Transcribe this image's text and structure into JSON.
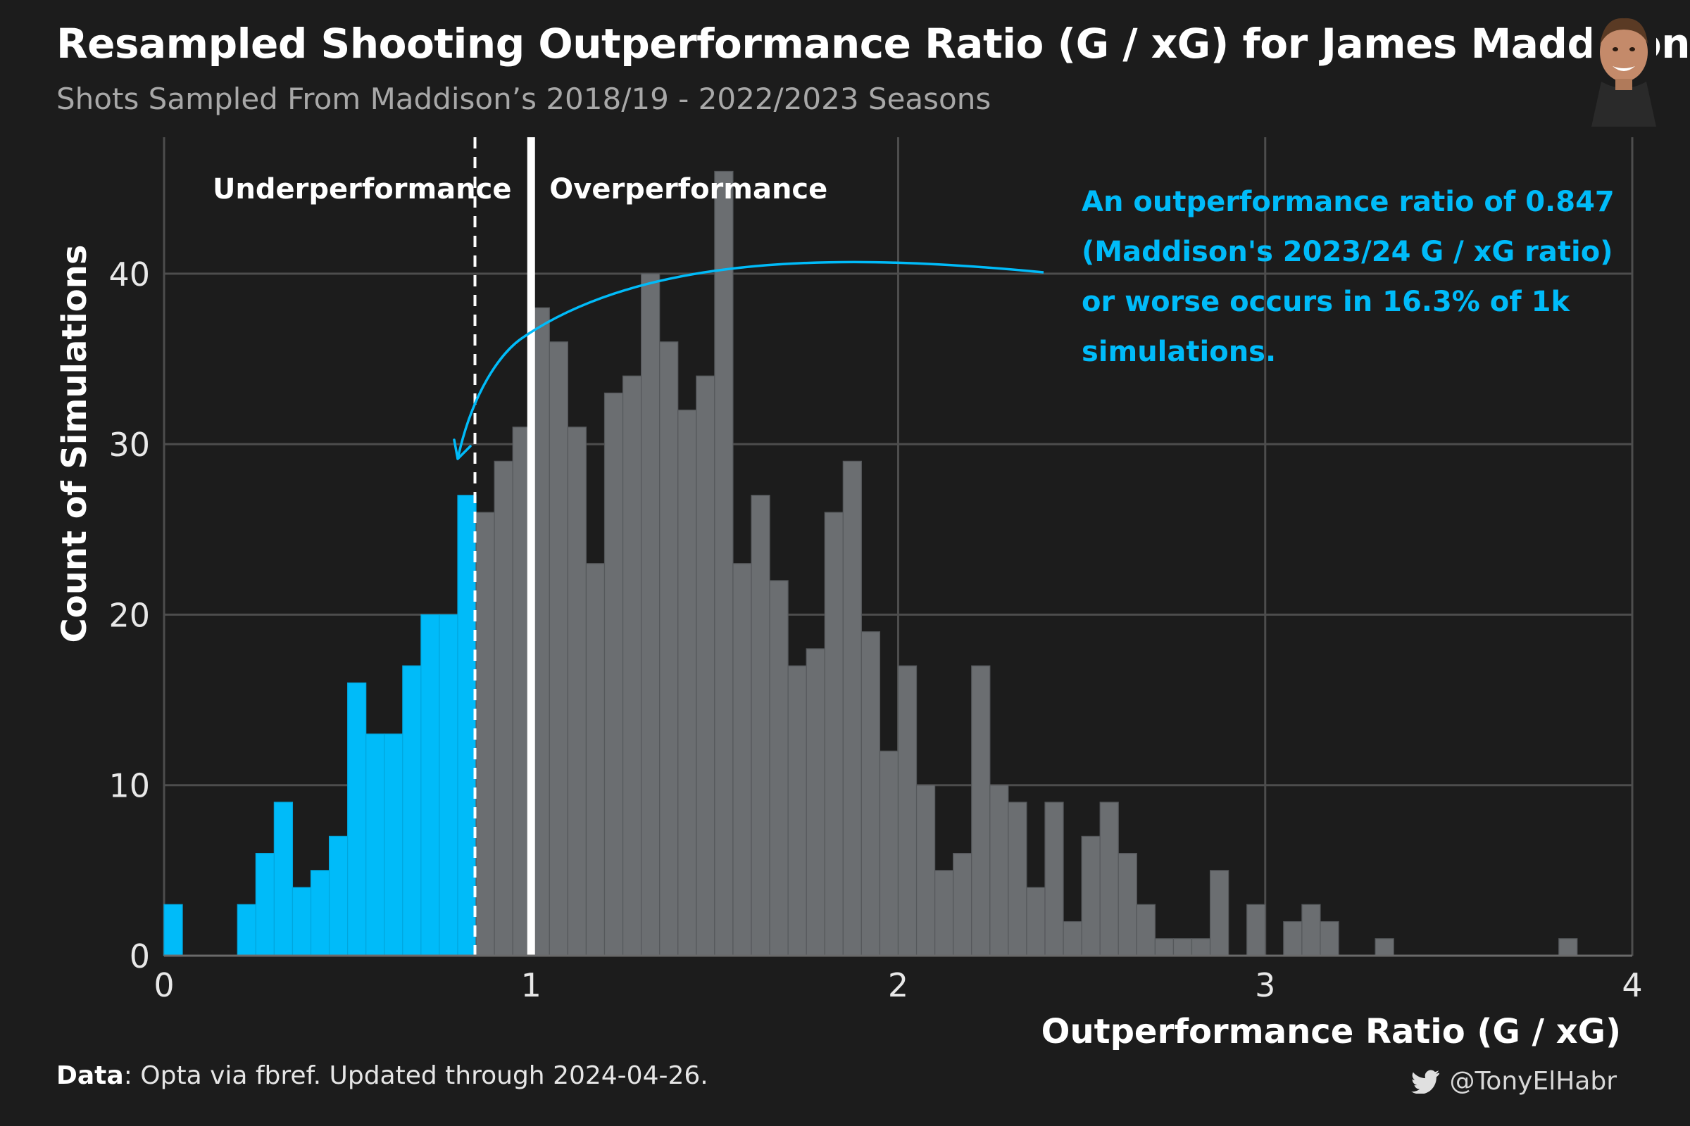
{
  "header": {
    "title": "Resampled Shooting Outperformance Ratio (G / xG) for James Maddison",
    "subtitle": "Shots Sampled From Maddison’s 2018/19 - 2022/2023 Seasons"
  },
  "footer": {
    "caption_label": "Data",
    "caption_text": ": Opta via fbref. Updated through 2024-04-26.",
    "handle": "@TonyElHabr",
    "handle_icon": "twitter-bird-icon"
  },
  "colors": {
    "background": "#1c1c1c",
    "highlight": "#00bbf9",
    "bars": "#6b6e71",
    "grid": "#4d4d4d",
    "reference_line": "#ffffff"
  },
  "chart_data": {
    "type": "bar",
    "subtype": "histogram",
    "xlabel": "Outperformance Ratio (G / xG)",
    "ylabel": "Count of Simulations",
    "xlim": [
      0,
      4
    ],
    "ylim": [
      0,
      48
    ],
    "xticks": [
      0,
      1,
      2,
      3,
      4
    ],
    "yticks": [
      0,
      10,
      20,
      30,
      40
    ],
    "grid": true,
    "bin_width": 0.05,
    "threshold": 0.847,
    "reference_value": 1,
    "counts": [
      3,
      0,
      0,
      0,
      3,
      6,
      9,
      4,
      5,
      7,
      16,
      13,
      13,
      17,
      20,
      20,
      27,
      26,
      29,
      31,
      38,
      36,
      31,
      23,
      33,
      34,
      40,
      36,
      32,
      34,
      46,
      23,
      27,
      22,
      17,
      18,
      26,
      29,
      19,
      12,
      17,
      10,
      5,
      6,
      17,
      10,
      9,
      4,
      9,
      2,
      7,
      9,
      6,
      3,
      1,
      1,
      1,
      5,
      0,
      3,
      0,
      2,
      3,
      2,
      0,
      0,
      1,
      0,
      0,
      0,
      0,
      0,
      0,
      0,
      0,
      0,
      1
    ],
    "region_labels": {
      "under": "Underperformance",
      "over": "Overperformance"
    },
    "annotation": {
      "lines": [
        "An outperformance ratio of 0.847",
        "(Maddison's 2023/24 G / xG ratio)",
        "or worse occurs in 16.3% of 1k",
        "simulations."
      ]
    }
  }
}
